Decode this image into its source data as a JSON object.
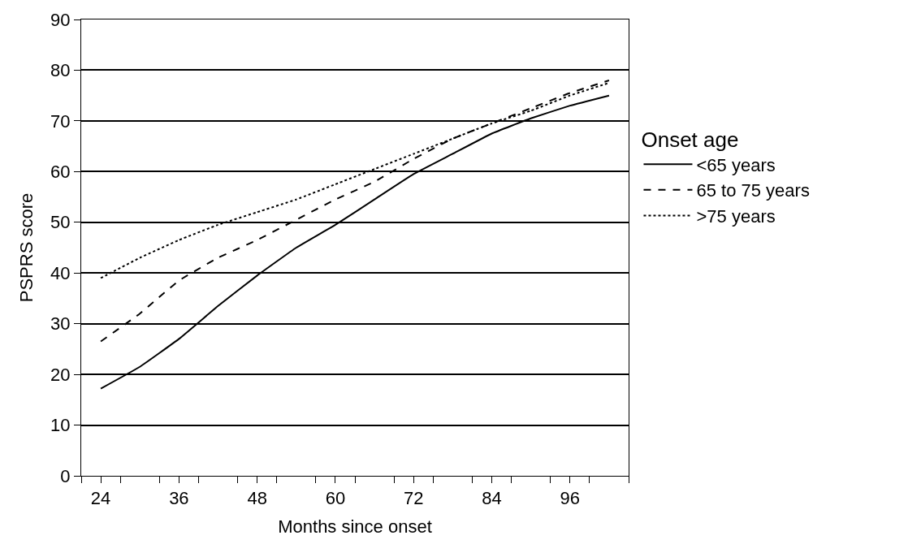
{
  "chart_data": {
    "type": "line",
    "xlabel": "Months since onset",
    "ylabel": "PSPRS score",
    "legend_title": "Onset age",
    "legend": "right",
    "grid": "y",
    "x": [
      24,
      30,
      36,
      42,
      48,
      54,
      60,
      66,
      72,
      78,
      84,
      90,
      96,
      102
    ],
    "series": [
      {
        "name": "<65 years",
        "color": "#000000",
        "line_style": "solid",
        "values": [
          17.2,
          21.5,
          27,
          33.5,
          39.5,
          45,
          49.5,
          54.5,
          59.5,
          63.5,
          67.5,
          70.5,
          73,
          75
        ]
      },
      {
        "name": "65 to 75 years",
        "color": "#000000",
        "line_style": "dashed",
        "values": [
          26.5,
          32,
          38.5,
          43,
          46.5,
          50.5,
          54.5,
          58,
          62.5,
          66.5,
          69.5,
          72.5,
          75.5,
          78
        ]
      },
      {
        "name": ">75 years",
        "color": "#000000",
        "line_style": "dotted",
        "values": [
          39,
          43,
          46.5,
          49.5,
          52,
          54.5,
          57.5,
          60.5,
          63.5,
          66.5,
          69.5,
          72,
          75,
          77.5
        ]
      }
    ],
    "xlim": [
      21,
      105
    ],
    "xticks": [
      {
        "value": 21,
        "label": null
      },
      24,
      {
        "value": 27,
        "label": null
      },
      {
        "value": 33,
        "label": null
      },
      36,
      {
        "value": 39,
        "label": null
      },
      {
        "value": 45,
        "label": null
      },
      48,
      {
        "value": 51,
        "label": null
      },
      {
        "value": 57,
        "label": null
      },
      60,
      {
        "value": 63,
        "label": null
      },
      {
        "value": 69,
        "label": null
      },
      72,
      {
        "value": 75,
        "label": null
      },
      {
        "value": 81,
        "label": null
      },
      84,
      {
        "value": 87,
        "label": null
      },
      {
        "value": 93,
        "label": null
      },
      96,
      {
        "value": 99,
        "label": null
      },
      {
        "value": 105,
        "label": null
      }
    ],
    "ylim": [
      0,
      90
    ],
    "yticks": [
      0,
      10,
      20,
      30,
      40,
      50,
      60,
      70,
      80,
      90
    ]
  }
}
